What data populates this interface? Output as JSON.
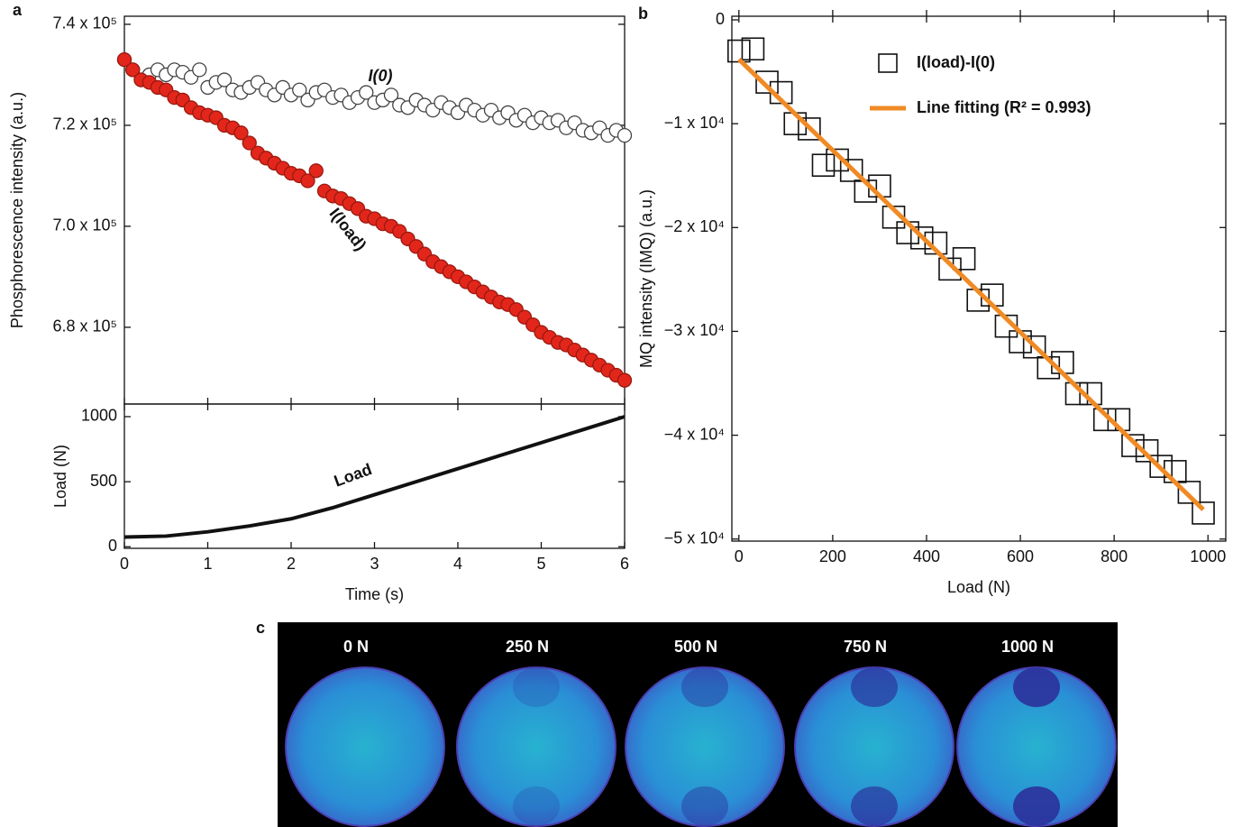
{
  "panel_labels": [
    "a",
    "b",
    "c"
  ],
  "chart_data": [
    {
      "type": "scatter",
      "ylabel": "Phosphorescence intensity (a.u.)",
      "xlim": [
        0,
        6
      ],
      "ylim": [
        664800,
        741600
      ],
      "yticks": [
        {
          "value": 680000,
          "label": "6.8 x 10⁵"
        },
        {
          "value": 700000,
          "label": "7.0 x 10⁵"
        },
        {
          "value": 720000,
          "label": "7.2 x 10⁵"
        },
        {
          "value": 740000,
          "label": "7.4 x 10⁵"
        }
      ],
      "x": [
        0,
        0.1,
        0.2,
        0.3,
        0.4,
        0.5,
        0.6,
        0.7,
        0.8,
        0.9,
        1,
        1.1,
        1.2,
        1.3,
        1.4,
        1.5,
        1.6,
        1.7,
        1.8,
        1.9,
        2,
        2.1,
        2.2,
        2.3,
        2.4,
        2.5,
        2.6,
        2.7,
        2.8,
        2.9,
        3,
        3.1,
        3.2,
        3.3,
        3.4,
        3.5,
        3.6,
        3.7,
        3.8,
        3.9,
        4,
        4.1,
        4.2,
        4.3,
        4.4,
        4.5,
        4.6,
        4.7,
        4.8,
        4.9,
        5,
        5.1,
        5.2,
        5.3,
        5.4,
        5.5,
        5.6,
        5.7,
        5.8,
        5.9,
        6
      ],
      "series": [
        {
          "name": "I(0)",
          "marker": "o",
          "color": "#ffffff",
          "edgecolor": "#444444",
          "values": [
            733000,
            731000,
            729000,
            730000,
            731000,
            730000,
            731000,
            730500,
            729500,
            731000,
            727500,
            728500,
            729000,
            727000,
            726500,
            727500,
            728500,
            727000,
            726000,
            727500,
            726000,
            727000,
            725000,
            726500,
            727000,
            725500,
            726000,
            724500,
            725500,
            726500,
            724500,
            725000,
            726000,
            724000,
            723500,
            725000,
            724000,
            723000,
            724500,
            723500,
            722500,
            724000,
            723000,
            722000,
            723000,
            721500,
            722500,
            721000,
            722000,
            720500,
            721500,
            720500,
            721000,
            719500,
            720500,
            719000,
            718500,
            719500,
            718000,
            719000,
            718000
          ]
        },
        {
          "name": "I(load)",
          "marker": "o",
          "color": "#e3261b",
          "edgecolor": "#9a1a10",
          "values": [
            733000,
            731000,
            729000,
            728500,
            727500,
            727000,
            725500,
            725000,
            723500,
            722500,
            722000,
            721500,
            720000,
            719500,
            718500,
            716500,
            714500,
            713500,
            712500,
            711500,
            710500,
            710000,
            709000,
            711000,
            707000,
            706000,
            705500,
            704500,
            703500,
            702000,
            701500,
            700500,
            700000,
            699000,
            697500,
            696000,
            694500,
            693000,
            692000,
            691000,
            690000,
            689000,
            688000,
            687000,
            686000,
            685000,
            684500,
            683500,
            682000,
            680500,
            679000,
            678000,
            677000,
            676500,
            675500,
            674500,
            673500,
            672500,
            671500,
            670500,
            669500
          ]
        }
      ]
    },
    {
      "type": "line",
      "xlabel": "Time (s)",
      "ylabel": "Load (N)",
      "xlim": [
        0,
        6
      ],
      "ylim": [
        -12,
        1097
      ],
      "xticks": [
        0,
        1,
        2,
        3,
        4,
        5,
        6
      ],
      "yticks": [
        0,
        500,
        1000
      ],
      "x": [
        0,
        0.5,
        1,
        1.5,
        2,
        2.5,
        3,
        3.5,
        4,
        4.5,
        5,
        5.5,
        6
      ],
      "series": [
        {
          "name": "Load",
          "color": "#111111",
          "values": [
            75,
            82,
            115,
            160,
            215,
            300,
            400,
            500,
            600,
            700,
            800,
            900,
            1000
          ]
        }
      ]
    },
    {
      "type": "scatter",
      "xlabel": "Load (N)",
      "ylabel": "MQ intensity (IMQ) (a.u.)",
      "xlim": [
        -15,
        1038
      ],
      "ylim": [
        -50200,
        350
      ],
      "xticks": [
        0,
        200,
        400,
        600,
        800,
        1000
      ],
      "yticks": [
        {
          "value": -50000,
          "label": "−5 x 10⁴"
        },
        {
          "value": -40000,
          "label": "−4 x 10⁴"
        },
        {
          "value": -30000,
          "label": "−3 x 10⁴"
        },
        {
          "value": -20000,
          "label": "−2 x 10⁴"
        },
        {
          "value": -10000,
          "label": "−1 x 10⁴"
        },
        0
      ],
      "legend": "upper right",
      "series": [
        {
          "name": "I(load)-I(0)",
          "marker": "s",
          "color": "#111111",
          "x": [
            0,
            30,
            60,
            90,
            120,
            150,
            180,
            210,
            240,
            270,
            300,
            330,
            360,
            390,
            420,
            450,
            480,
            510,
            540,
            570,
            600,
            630,
            660,
            690,
            720,
            750,
            780,
            810,
            840,
            870,
            900,
            930,
            960,
            990
          ],
          "values": [
            -3000,
            -2800,
            -6000,
            -7000,
            -10000,
            -10500,
            -14000,
            -13500,
            -14500,
            -16500,
            -16000,
            -19000,
            -20500,
            -21000,
            -21500,
            -24000,
            -23000,
            -27000,
            -26500,
            -29500,
            -31000,
            -31500,
            -33500,
            -33000,
            -36000,
            -36000,
            -38500,
            -38500,
            -41000,
            -41500,
            -43000,
            -43500,
            -45500,
            -47500
          ]
        },
        {
          "name": "Line fitting (R² = 0.993)",
          "marker": "line",
          "color": "#f08a24",
          "x": [
            0,
            990
          ],
          "values": [
            -3800,
            -47162
          ]
        }
      ]
    }
  ],
  "panel_c": {
    "labels": [
      "0 N",
      "250 N",
      "500 N",
      "750 N",
      "1000 N"
    ]
  }
}
